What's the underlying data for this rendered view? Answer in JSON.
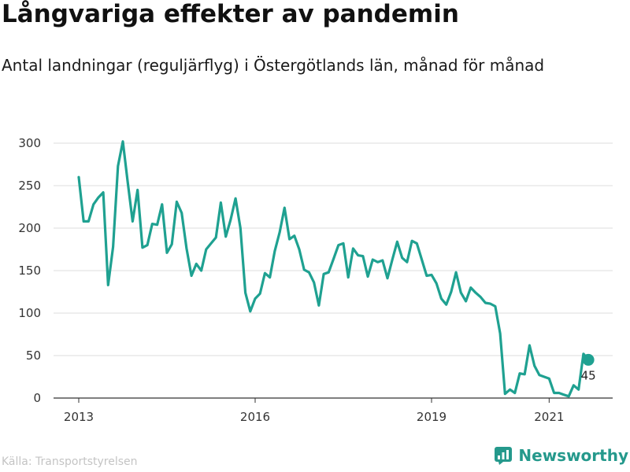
{
  "header": {
    "title": "Långvariga effekter av pandemin",
    "subtitle": "Antal landningar (reguljärflyg) i Östergötlands län, månad för månad"
  },
  "footer": {
    "source": "Källa: Transportstyrelsen",
    "brand": "Newsworthy"
  },
  "colors": {
    "line": "#1fa191",
    "grid": "#dcdcdc",
    "axis": "#333333",
    "brand": "#25998c"
  },
  "chart_data": {
    "type": "line",
    "title": "Långvariga effekter av pandemin",
    "subtitle": "Antal landningar (reguljärflyg) i Östergötlands län, månad för månad",
    "xlabel": "",
    "ylabel": "",
    "ylim": [
      0,
      300
    ],
    "yticks": [
      0,
      50,
      100,
      150,
      200,
      250,
      300
    ],
    "xticks": [
      "2013",
      "2016",
      "2019",
      "2021"
    ],
    "grid": "horizontal",
    "x": [
      "2013-01",
      "2013-02",
      "2013-03",
      "2013-04",
      "2013-05",
      "2013-06",
      "2013-07",
      "2013-08",
      "2013-09",
      "2013-10",
      "2013-11",
      "2013-12",
      "2014-01",
      "2014-02",
      "2014-03",
      "2014-04",
      "2014-05",
      "2014-06",
      "2014-07",
      "2014-08",
      "2014-09",
      "2014-10",
      "2014-11",
      "2014-12",
      "2015-01",
      "2015-02",
      "2015-03",
      "2015-04",
      "2015-05",
      "2015-06",
      "2015-07",
      "2015-08",
      "2015-09",
      "2015-10",
      "2015-11",
      "2015-12",
      "2016-01",
      "2016-02",
      "2016-03",
      "2016-04",
      "2016-05",
      "2016-06",
      "2016-07",
      "2016-08",
      "2016-09",
      "2016-10",
      "2016-11",
      "2016-12",
      "2017-01",
      "2017-02",
      "2017-03",
      "2017-04",
      "2017-05",
      "2017-06",
      "2017-07",
      "2017-08",
      "2017-09",
      "2017-10",
      "2017-11",
      "2017-12",
      "2018-01",
      "2018-02",
      "2018-03",
      "2018-04",
      "2018-05",
      "2018-06",
      "2018-07",
      "2018-08",
      "2018-09",
      "2018-10",
      "2018-11",
      "2018-12",
      "2019-01",
      "2019-02",
      "2019-03",
      "2019-04",
      "2019-05",
      "2019-06",
      "2019-07",
      "2019-08",
      "2019-09",
      "2019-10",
      "2019-11",
      "2019-12",
      "2020-01",
      "2020-02",
      "2020-03",
      "2020-04",
      "2020-05",
      "2020-06",
      "2020-07",
      "2020-08",
      "2020-09",
      "2020-10",
      "2020-11",
      "2020-12",
      "2021-01",
      "2021-02",
      "2021-03",
      "2021-04",
      "2021-05",
      "2021-06",
      "2021-07",
      "2021-08",
      "2021-09"
    ],
    "series": [
      {
        "values": [
          260,
          208,
          208,
          228,
          236,
          242,
          133,
          178,
          273,
          302,
          254,
          208,
          245,
          177,
          180,
          205,
          204,
          228,
          171,
          181,
          231,
          218,
          176,
          144,
          158,
          150,
          175,
          182,
          189,
          230,
          190,
          210,
          235,
          200,
          124,
          102,
          117,
          123,
          147,
          142,
          173,
          195,
          224,
          187,
          191,
          175,
          151,
          148,
          136,
          109,
          146,
          148,
          164,
          180,
          182,
          142,
          176,
          168,
          167,
          143,
          163,
          160,
          162,
          141,
          163,
          184,
          165,
          160,
          185,
          182,
          163,
          144,
          145,
          135,
          117,
          110,
          125,
          148,
          124,
          114,
          130,
          124,
          119,
          112,
          111,
          108,
          76,
          5,
          10,
          6,
          29,
          28,
          62,
          38,
          27,
          25,
          23,
          6,
          6,
          4,
          2,
          15,
          10,
          52,
          45
        ],
        "last_label": "45"
      }
    ]
  }
}
